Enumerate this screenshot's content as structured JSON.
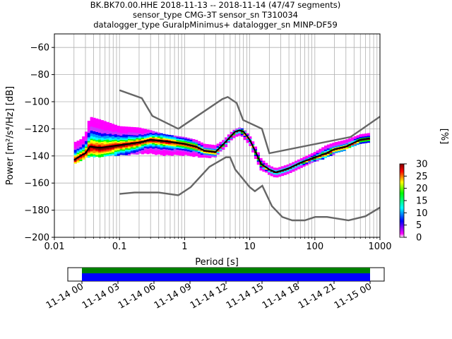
{
  "header": {
    "line1": "BK.BK70.00.HHE   2018-11-13 -- 2018-11-14  (47/47 segments)",
    "line2": "sensor_type CMG-3T sensor_sn T310034",
    "line3": "datalogger_type GuralpMinimus+ datalogger_sn MINP-DF59"
  },
  "chart_data": [
    {
      "type": "heatmap",
      "xlabel": "Period [s]",
      "ylabel": "Power [m²/s⁴/Hz] [dB]",
      "x_scale": "log",
      "xlim": [
        0.01,
        1000
      ],
      "ylim": [
        -200,
        -50
      ],
      "x_ticks": [
        0.01,
        0.1,
        1,
        10,
        100,
        1000
      ],
      "x_tick_labels": [
        "0.01",
        "0.1",
        "1",
        "10",
        "100",
        "1000"
      ],
      "y_ticks": [
        -200,
        -180,
        -160,
        -140,
        -120,
        -100,
        -80,
        -60
      ],
      "y_tick_labels": [
        "−200",
        "−180",
        "−160",
        "−140",
        "−120",
        "−100",
        "−80",
        "−60"
      ],
      "grid": true,
      "noise_model_high": {
        "x": [
          0.1,
          0.22,
          0.32,
          0.8,
          3.8,
          4.6,
          6.3,
          7.9,
          15.4,
          20,
          354.8,
          1000
        ],
        "y": [
          -91.5,
          -97.4,
          -110.5,
          -120,
          -98,
          -96.5,
          -101,
          -113.5,
          -120,
          -138,
          -126,
          -111
        ]
      },
      "noise_model_low": {
        "x": [
          0.1,
          0.17,
          0.4,
          0.8,
          1.24,
          2.4,
          4.3,
          5.0,
          6.0,
          10.0,
          12.0,
          15.6,
          21.9,
          31.6,
          45.0,
          70.0,
          101.0,
          154.0,
          328.0,
          600.0,
          1000
        ],
        "y": [
          -168,
          -167,
          -167,
          -169,
          -163,
          -148,
          -141,
          -141,
          -150,
          -163,
          -166,
          -162,
          -177,
          -185,
          -187.5,
          -187.5,
          -185,
          -185,
          -187.5,
          -184.5,
          -178
        ]
      },
      "mode_curve": {
        "x": [
          0.02,
          0.025,
          0.03,
          0.035,
          0.05,
          0.1,
          0.2,
          0.3,
          0.5,
          1,
          1.5,
          2,
          3,
          4,
          5,
          6,
          7,
          8,
          10,
          12,
          15,
          20,
          25,
          30,
          40,
          60,
          100,
          150,
          200,
          300,
          500,
          700
        ],
        "y": [
          -143,
          -140,
          -138,
          -133,
          -134,
          -132,
          -130,
          -128,
          -129,
          -131,
          -133,
          -136,
          -137,
          -131,
          -126,
          -122,
          -121,
          -122,
          -128,
          -136,
          -146,
          -150,
          -152,
          -151,
          -149,
          -145,
          -141,
          -138,
          -135,
          -133,
          -128,
          -127
        ]
      },
      "psd_spread": {
        "x": [
          0.02,
          0.025,
          0.03,
          0.035,
          0.05,
          0.1,
          0.2,
          0.3,
          0.5,
          1,
          1.5,
          2,
          3,
          4,
          5,
          6,
          7,
          8,
          10,
          12,
          15,
          20,
          25,
          30,
          40,
          60,
          100,
          150,
          200,
          300,
          500,
          700
        ],
        "top": [
          -130,
          -128,
          -124,
          -111,
          -113,
          -118,
          -119,
          -121,
          -124,
          -126,
          -128,
          -131,
          -132,
          -128,
          -123,
          -120,
          -119,
          -120,
          -125,
          -132,
          -142,
          -147,
          -149,
          -148,
          -146,
          -142,
          -137,
          -132,
          -130,
          -128,
          -124,
          -123
        ],
        "bottom": [
          -145,
          -143,
          -141,
          -140,
          -140,
          -139,
          -138,
          -138,
          -139,
          -139,
          -140,
          -141,
          -140,
          -134,
          -129,
          -125,
          -124,
          -126,
          -131,
          -140,
          -150,
          -153,
          -155,
          -154,
          -152,
          -148,
          -144,
          -141,
          -138,
          -135,
          -130,
          -129
        ]
      },
      "colors": {
        "noise_model": "#666666",
        "mode_curve": "#000000"
      }
    },
    {
      "type": "colorbar",
      "label": "[%]",
      "range": [
        0,
        30
      ],
      "ticks": [
        0,
        5,
        10,
        15,
        20,
        25,
        30
      ],
      "colormap": [
        "#ffffff",
        "#ff00ff",
        "#0000ff",
        "#00ffff",
        "#00ff00",
        "#ffff00",
        "#ff0000",
        "#7f0000"
      ]
    },
    {
      "type": "timeline",
      "tick_labels": [
        "11-14 00",
        "11-14 03",
        "11-14 06",
        "11-14 09",
        "11-14 12",
        "11-14 15",
        "11-14 18",
        "11-14 21",
        "11-15 00"
      ],
      "upper_band_color": "#008000",
      "lower_band_color": "#0000ff"
    }
  ]
}
